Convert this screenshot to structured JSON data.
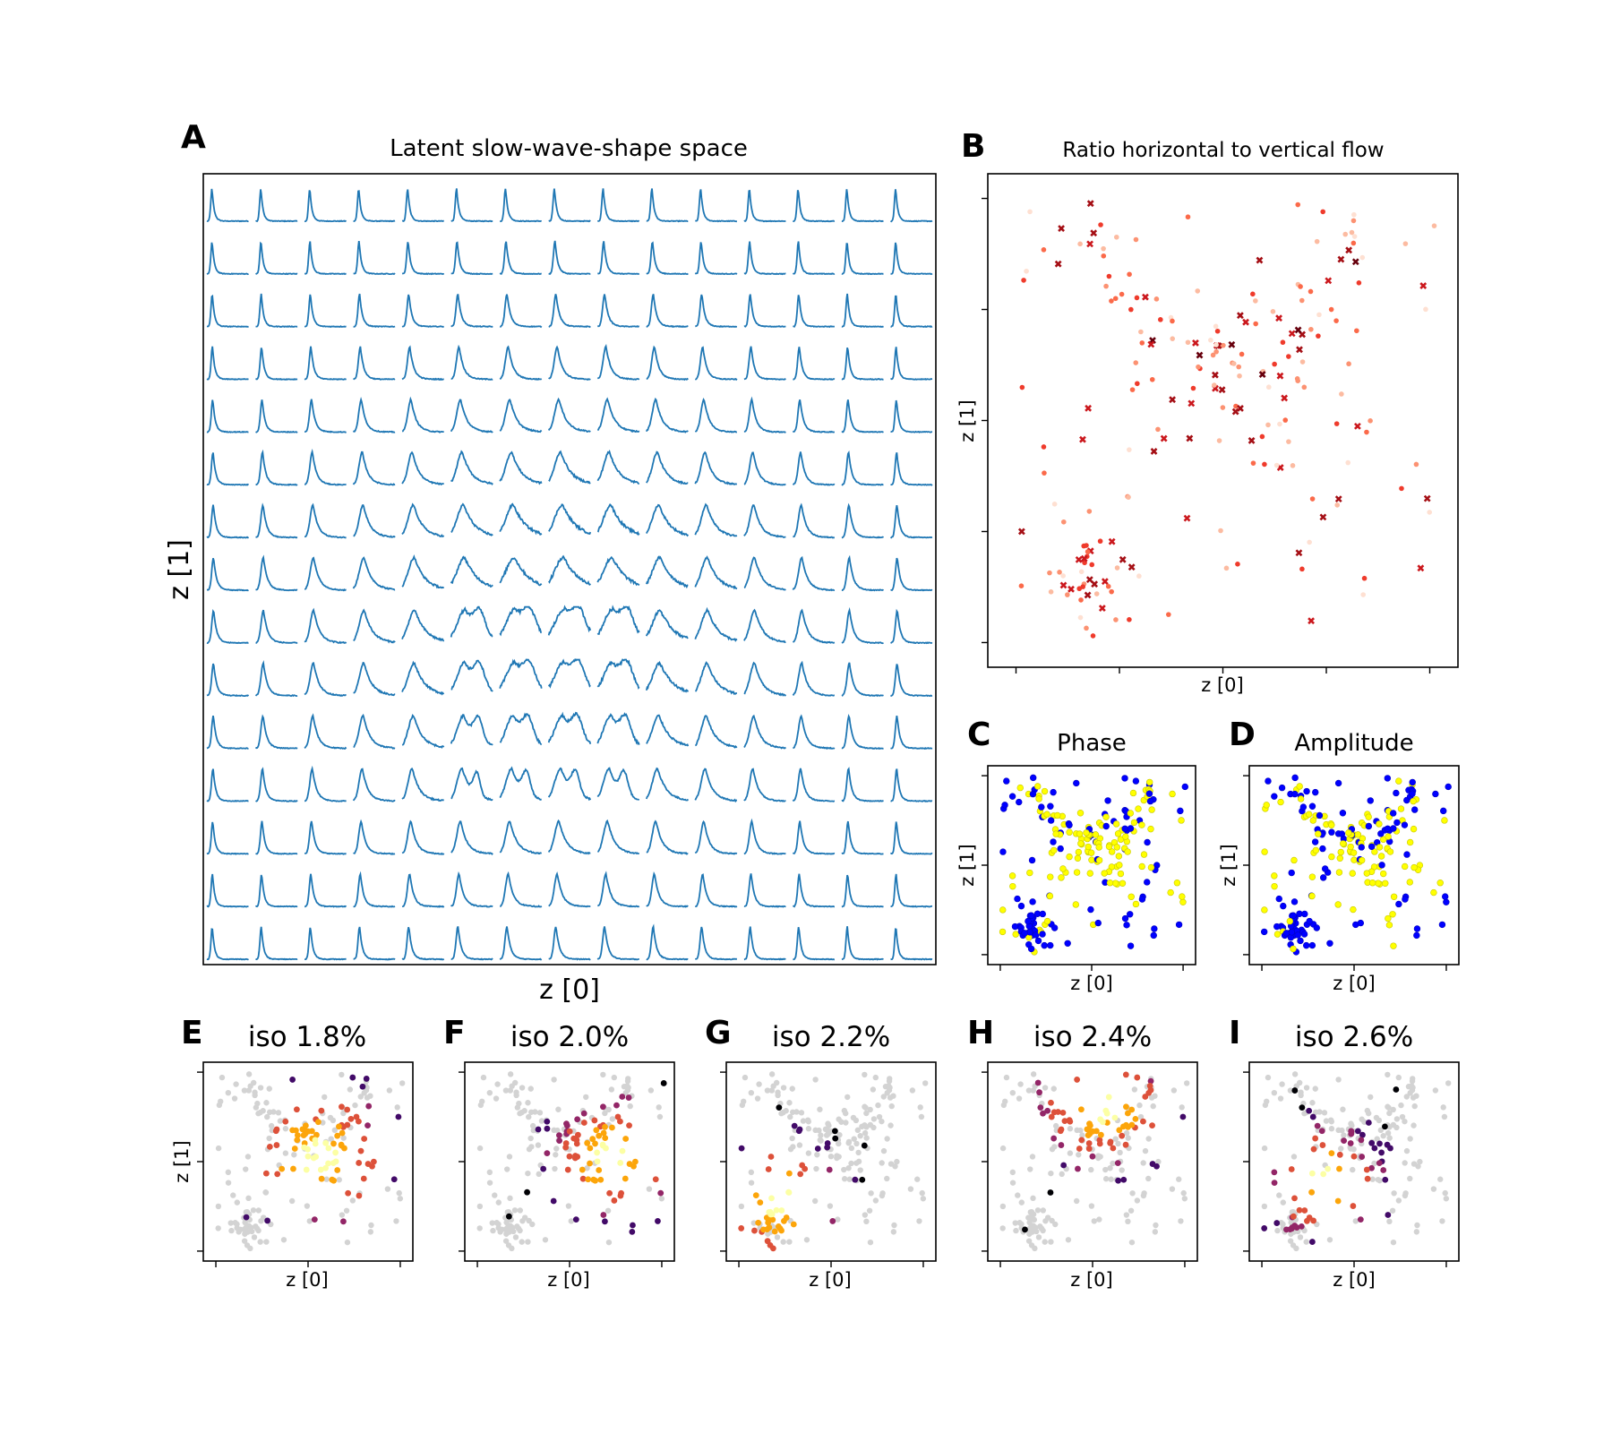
{
  "panel_letters": {
    "A": "A",
    "B": "B",
    "C": "C",
    "D": "D",
    "E": "E",
    "F": "F",
    "G": "G",
    "H": "H",
    "I": "I"
  },
  "titles": {
    "A": "Latent slow-wave-shape space",
    "B": "Ratio horizontal to vertical flow",
    "C": "Phase",
    "D": "Amplitude",
    "E": "iso 1.8%",
    "F": "iso 2.0%",
    "G": "iso 2.2%",
    "H": "iso 2.4%",
    "I": "iso 2.6%"
  },
  "axes": {
    "x": "z [0]",
    "y": "z [1]"
  },
  "colors": {
    "trace": "#1f77b4",
    "phase_low": "#0000ff",
    "phase_high": "#ffff00",
    "grey_points": "#d3d3d3",
    "reds": [
      "#fee0d2",
      "#fcbba1",
      "#fc9272",
      "#fb6a4a",
      "#ef3b2c",
      "#cb181d",
      "#a50f15",
      "#67000d"
    ],
    "inferno": [
      "#000004",
      "#420a68",
      "#932667",
      "#dd513a",
      "#fca50a",
      "#fcffa4"
    ]
  },
  "chart_data": [
    {
      "id": "A",
      "type": "line",
      "title": "Latent slow-wave-shape space",
      "xlabel": "z [0]",
      "ylabel": "z [1]",
      "grid": {
        "rows": 15,
        "cols": 15
      },
      "note_series": "15x15 grid of decoded slow-wave traces; central traces broad/multi-peaked, outer traces narrow single spikes"
    },
    {
      "id": "B",
      "type": "scatter",
      "title": "Ratio horizontal to vertical flow",
      "xlabel": "z [0]",
      "ylabel": "z [1]",
      "xlim": [
        -3,
        3
      ],
      "ylim": [
        -3,
        3
      ],
      "colormap": "Reds",
      "n_points": 210
    },
    {
      "id": "C",
      "type": "scatter",
      "title": "Phase",
      "xlabel": "z [0]",
      "ylabel": "z [1]",
      "classes": [
        "blue",
        "yellow"
      ]
    },
    {
      "id": "D",
      "type": "scatter",
      "title": "Amplitude",
      "xlabel": "z [0]",
      "ylabel": "z [1]",
      "classes": [
        "blue",
        "yellow"
      ]
    },
    {
      "id": "E",
      "type": "scatter",
      "title": "iso 1.8%",
      "xlabel": "z [0]",
      "ylabel": "z [1]",
      "colormap": "inferno",
      "background": "lightgrey"
    },
    {
      "id": "F",
      "type": "scatter",
      "title": "iso 2.0%",
      "xlabel": "z [0]",
      "ylabel": "",
      "colormap": "inferno",
      "background": "lightgrey"
    },
    {
      "id": "G",
      "type": "scatter",
      "title": "iso 2.2%",
      "xlabel": "z [0]",
      "ylabel": "",
      "colormap": "inferno",
      "background": "lightgrey"
    },
    {
      "id": "H",
      "type": "scatter",
      "title": "iso 2.4%",
      "xlabel": "z [0]",
      "ylabel": "",
      "colormap": "inferno",
      "background": "lightgrey"
    },
    {
      "id": "I",
      "type": "scatter",
      "title": "iso 2.6%",
      "xlabel": "z [0]",
      "ylabel": "",
      "colormap": "inferno",
      "background": "lightgrey"
    }
  ]
}
